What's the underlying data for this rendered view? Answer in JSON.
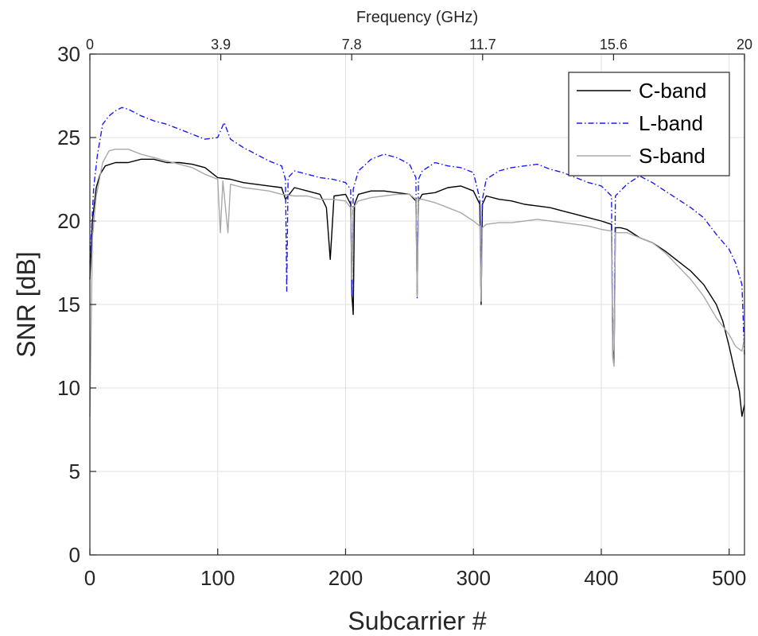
{
  "chart_data": {
    "type": "line",
    "xlabel": "Subcarrier #",
    "ylabel": "SNR [dB]",
    "x2label": "Frequency (GHz)",
    "xlim": [
      0,
      512
    ],
    "ylim": [
      0,
      30
    ],
    "x_ticks": [
      0,
      100,
      200,
      300,
      400,
      500
    ],
    "y_ticks": [
      0,
      5,
      10,
      15,
      20,
      25,
      30
    ],
    "x2_ticks": [
      {
        "at": 0,
        "label": "0"
      },
      {
        "at": 102.4,
        "label": "3.9"
      },
      {
        "at": 204.8,
        "label": "7.8"
      },
      {
        "at": 307.2,
        "label": "11.7"
      },
      {
        "at": 409.6,
        "label": "15.6"
      },
      {
        "at": 512,
        "label": "20"
      }
    ],
    "grid": true,
    "legend_position": "top-right",
    "series": [
      {
        "name": "C-band",
        "color": "#000000",
        "dash": "solid",
        "points": [
          [
            0,
            16.5
          ],
          [
            2,
            20
          ],
          [
            5,
            22
          ],
          [
            8,
            22.8
          ],
          [
            12,
            23.3
          ],
          [
            20,
            23.5
          ],
          [
            30,
            23.5
          ],
          [
            40,
            23.7
          ],
          [
            50,
            23.7
          ],
          [
            60,
            23.5
          ],
          [
            70,
            23.5
          ],
          [
            80,
            23.4
          ],
          [
            90,
            23.2
          ],
          [
            100,
            22.6
          ],
          [
            110,
            22.5
          ],
          [
            120,
            22.3
          ],
          [
            130,
            22.2
          ],
          [
            140,
            22.1
          ],
          [
            150,
            22
          ],
          [
            153,
            21.3
          ],
          [
            160,
            22
          ],
          [
            170,
            21.8
          ],
          [
            180,
            21.6
          ],
          [
            185,
            20.8
          ],
          [
            188,
            17.7
          ],
          [
            191,
            21.5
          ],
          [
            200,
            21.6
          ],
          [
            204,
            21
          ],
          [
            205,
            15.5
          ],
          [
            206,
            14.4
          ],
          [
            207,
            21
          ],
          [
            210,
            21.6
          ],
          [
            220,
            21.8
          ],
          [
            230,
            21.8
          ],
          [
            240,
            21.7
          ],
          [
            250,
            21.6
          ],
          [
            255,
            21.2
          ],
          [
            256,
            15.8
          ],
          [
            257,
            21.2
          ],
          [
            260,
            21.6
          ],
          [
            270,
            21.7
          ],
          [
            280,
            22
          ],
          [
            290,
            22.1
          ],
          [
            300,
            21.8
          ],
          [
            305,
            21
          ],
          [
            306,
            15
          ],
          [
            307,
            21
          ],
          [
            310,
            21.5
          ],
          [
            320,
            21.3
          ],
          [
            330,
            21.2
          ],
          [
            340,
            21
          ],
          [
            350,
            20.9
          ],
          [
            360,
            20.8
          ],
          [
            370,
            20.6
          ],
          [
            380,
            20.4
          ],
          [
            390,
            20.2
          ],
          [
            400,
            20
          ],
          [
            408,
            19.8
          ],
          [
            409,
            12.3
          ],
          [
            410,
            11.5
          ],
          [
            411,
            19.6
          ],
          [
            415,
            19.6
          ],
          [
            420,
            19.5
          ],
          [
            430,
            19
          ],
          [
            440,
            18.7
          ],
          [
            450,
            18.2
          ],
          [
            460,
            17.6
          ],
          [
            470,
            17
          ],
          [
            480,
            16.2
          ],
          [
            490,
            15
          ],
          [
            495,
            14
          ],
          [
            500,
            12.5
          ],
          [
            505,
            10.8
          ],
          [
            508,
            9.8
          ],
          [
            510,
            8.3
          ],
          [
            512,
            9
          ]
        ]
      },
      {
        "name": "L-band",
        "color": "#1a1aee",
        "dash": "dashdot",
        "points": [
          [
            0,
            17.5
          ],
          [
            3,
            22
          ],
          [
            6,
            24
          ],
          [
            10,
            25.8
          ],
          [
            15,
            26.3
          ],
          [
            20,
            26.6
          ],
          [
            25,
            26.8
          ],
          [
            30,
            26.7
          ],
          [
            40,
            26.3
          ],
          [
            50,
            26
          ],
          [
            60,
            25.8
          ],
          [
            70,
            25.5
          ],
          [
            80,
            25.2
          ],
          [
            90,
            24.9
          ],
          [
            100,
            25
          ],
          [
            105,
            25.9
          ],
          [
            110,
            24.9
          ],
          [
            120,
            24.4
          ],
          [
            130,
            24
          ],
          [
            140,
            23.6
          ],
          [
            150,
            23.3
          ],
          [
            153,
            22.5
          ],
          [
            154,
            15.8
          ],
          [
            155,
            22.6
          ],
          [
            160,
            23
          ],
          [
            170,
            22.8
          ],
          [
            180,
            22.6
          ],
          [
            190,
            22.5
          ],
          [
            200,
            22.3
          ],
          [
            204,
            21.9
          ],
          [
            205,
            15.6
          ],
          [
            206,
            21.9
          ],
          [
            210,
            23
          ],
          [
            220,
            23.7
          ],
          [
            230,
            24
          ],
          [
            240,
            23.8
          ],
          [
            250,
            23.4
          ],
          [
            255,
            22.6
          ],
          [
            256,
            15.4
          ],
          [
            257,
            22.5
          ],
          [
            260,
            23
          ],
          [
            270,
            23.5
          ],
          [
            280,
            23.3
          ],
          [
            290,
            23.2
          ],
          [
            300,
            22.9
          ],
          [
            305,
            21.3
          ],
          [
            306,
            15.1
          ],
          [
            307,
            21.3
          ],
          [
            310,
            22.5
          ],
          [
            320,
            23
          ],
          [
            330,
            23.2
          ],
          [
            340,
            23.3
          ],
          [
            350,
            23.4
          ],
          [
            360,
            23.1
          ],
          [
            370,
            22.9
          ],
          [
            380,
            22.6
          ],
          [
            390,
            22.3
          ],
          [
            400,
            22.1
          ],
          [
            408,
            21.5
          ],
          [
            409,
            12
          ],
          [
            410,
            11.6
          ],
          [
            411,
            21.5
          ],
          [
            420,
            22.2
          ],
          [
            430,
            22.7
          ],
          [
            440,
            22.3
          ],
          [
            450,
            21.8
          ],
          [
            460,
            21.3
          ],
          [
            470,
            20.8
          ],
          [
            480,
            20.2
          ],
          [
            490,
            19.2
          ],
          [
            500,
            18.3
          ],
          [
            505,
            17.5
          ],
          [
            510,
            16.2
          ],
          [
            512,
            12
          ]
        ]
      },
      {
        "name": "S-band",
        "color": "#a8a8a8",
        "dash": "solid",
        "points": [
          [
            0,
            8.3
          ],
          [
            2,
            19
          ],
          [
            5,
            21.5
          ],
          [
            10,
            23.5
          ],
          [
            15,
            24.2
          ],
          [
            20,
            24.3
          ],
          [
            30,
            24.3
          ],
          [
            40,
            24
          ],
          [
            50,
            23.8
          ],
          [
            60,
            23.6
          ],
          [
            70,
            23.4
          ],
          [
            80,
            23.2
          ],
          [
            90,
            22.8
          ],
          [
            100,
            22.5
          ],
          [
            102,
            19.3
          ],
          [
            104,
            22.4
          ],
          [
            108,
            19.3
          ],
          [
            110,
            22.2
          ],
          [
            120,
            22
          ],
          [
            130,
            21.9
          ],
          [
            140,
            21.8
          ],
          [
            150,
            21.6
          ],
          [
            160,
            21.5
          ],
          [
            170,
            21.5
          ],
          [
            180,
            21.3
          ],
          [
            190,
            21.3
          ],
          [
            200,
            21.2
          ],
          [
            204,
            20.8
          ],
          [
            205,
            16.5
          ],
          [
            206,
            20.8
          ],
          [
            210,
            21.2
          ],
          [
            220,
            21.4
          ],
          [
            230,
            21.5
          ],
          [
            240,
            21.6
          ],
          [
            250,
            21.6
          ],
          [
            255,
            21.3
          ],
          [
            256,
            15.5
          ],
          [
            257,
            21.3
          ],
          [
            260,
            21.3
          ],
          [
            270,
            21.1
          ],
          [
            280,
            20.8
          ],
          [
            290,
            20.5
          ],
          [
            300,
            20
          ],
          [
            305,
            19.7
          ],
          [
            306,
            15.2
          ],
          [
            307,
            19.6
          ],
          [
            310,
            19.8
          ],
          [
            320,
            19.9
          ],
          [
            330,
            19.9
          ],
          [
            340,
            20
          ],
          [
            350,
            20.1
          ],
          [
            360,
            20
          ],
          [
            370,
            19.9
          ],
          [
            380,
            19.8
          ],
          [
            390,
            19.7
          ],
          [
            400,
            19.5
          ],
          [
            408,
            19.4
          ],
          [
            409,
            11.8
          ],
          [
            410,
            11.3
          ],
          [
            411,
            19.3
          ],
          [
            420,
            19.3
          ],
          [
            430,
            19
          ],
          [
            440,
            18.7
          ],
          [
            450,
            18.1
          ],
          [
            460,
            17.3
          ],
          [
            470,
            16.5
          ],
          [
            480,
            15.5
          ],
          [
            490,
            14.2
          ],
          [
            500,
            13.2
          ],
          [
            505,
            12.5
          ],
          [
            510,
            12.2
          ],
          [
            512,
            13
          ]
        ]
      }
    ]
  }
}
